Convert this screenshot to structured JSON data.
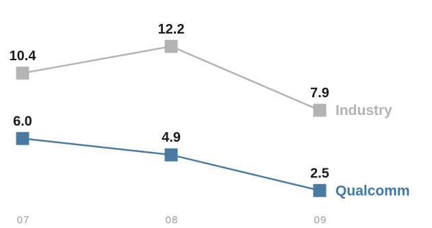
{
  "chart_data": {
    "type": "line",
    "categories": [
      "07",
      "08",
      "09"
    ],
    "series": [
      {
        "name": "Industry",
        "values": [
          10.4,
          12.2,
          7.9
        ],
        "labels": [
          "10.4",
          "12.2",
          "7.9"
        ],
        "color": "#b3b3b3",
        "label_color": "#b3b3b3"
      },
      {
        "name": "Qualcomm",
        "values": [
          6.0,
          4.9,
          2.5
        ],
        "labels": [
          "6.0",
          "4.9",
          "2.5"
        ],
        "color": "#4a7aa0",
        "label_color": "#3f78a6"
      }
    ],
    "title": "",
    "xlabel": "",
    "ylabel": "",
    "ylim": [
      0,
      14
    ],
    "grid": false,
    "legend": "inline-right"
  }
}
